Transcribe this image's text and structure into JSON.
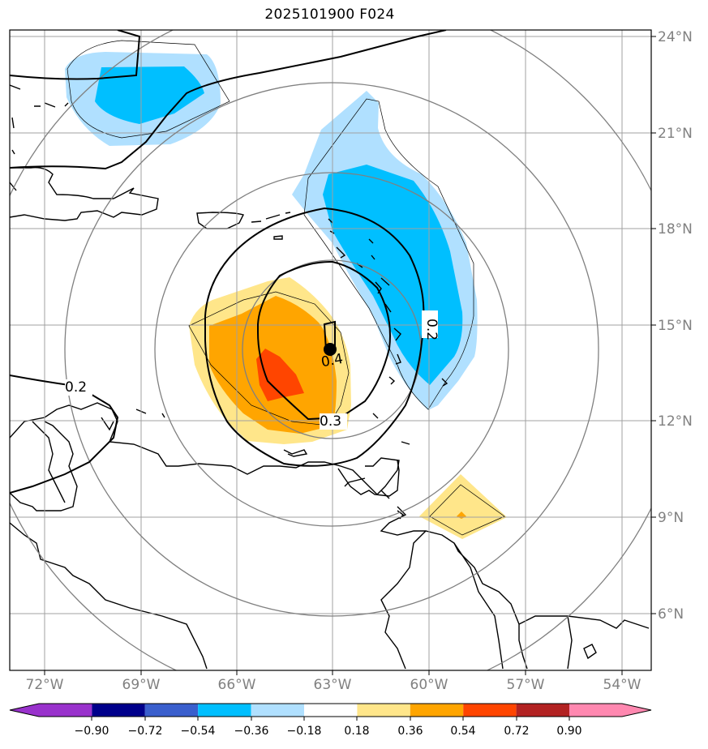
{
  "title": "2025101900 F024",
  "latitude_labels": [
    "24°N",
    "21°N",
    "18°N",
    "15°N",
    "12°N",
    "9°N",
    "6°N"
  ],
  "longitude_labels": [
    "72°W",
    "69°W",
    "66°W",
    "63°W",
    "60°W",
    "57°W",
    "54°W"
  ],
  "contour_labels": [
    "0.2",
    "0.2",
    "0.4",
    "0.3"
  ],
  "storm_center": {
    "lon": "63.0°W",
    "lat": "14.2°N"
  },
  "colorbar": {
    "tick_labels": [
      "−0.90",
      "−0.72",
      "−0.54",
      "−0.36",
      "−0.18",
      "0.18",
      "0.36",
      "0.54",
      "0.72",
      "0.90"
    ],
    "colors": [
      "#9932cc",
      "#00008b",
      "#3a5fcd",
      "#00bfff",
      "#b0e0ff",
      "#ffffff",
      "#ffe68a",
      "#ffa500",
      "#ff4500",
      "#b22222",
      "#ff88b0"
    ]
  },
  "colors": {
    "positive_light": "#ffe68a",
    "positive_mid": "#ffa500",
    "positive_strong": "#ff4500",
    "negative_light": "#b0e0ff",
    "negative_mid": "#00bfff",
    "gridline": "#a0a0a0",
    "range_ring": "#808080"
  }
}
